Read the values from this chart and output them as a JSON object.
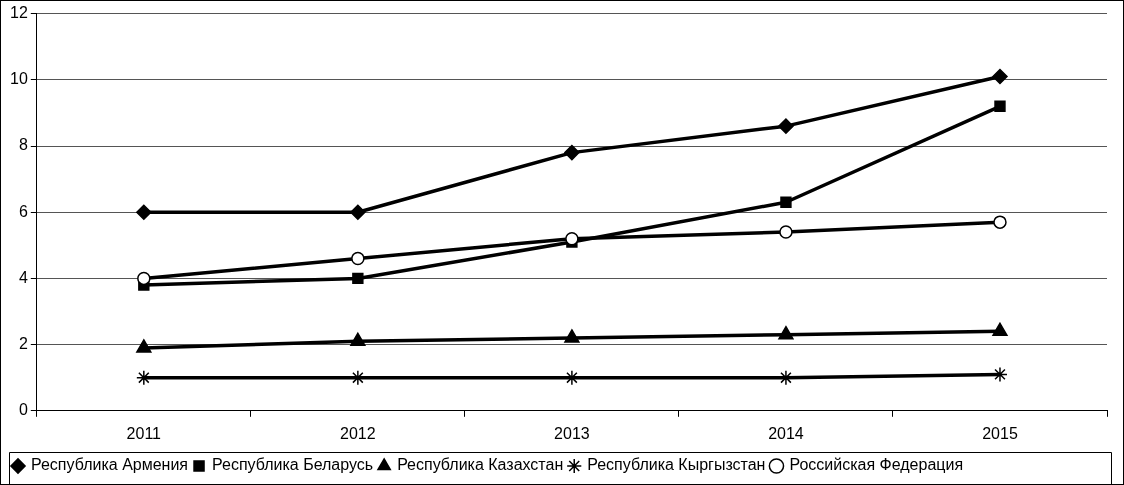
{
  "chart_data": {
    "type": "line",
    "categories": [
      "2011",
      "2012",
      "2013",
      "2014",
      "2015"
    ],
    "series": [
      {
        "name": "Республика Армения",
        "color": "#000000",
        "marker": "diamond",
        "values": [
          6,
          6,
          7.8,
          8.6,
          10.1
        ]
      },
      {
        "name": "Республика Беларусь",
        "color": "#000000",
        "marker": "square",
        "values": [
          3.8,
          4,
          5.1,
          6.3,
          9.2
        ]
      },
      {
        "name": "Республика Казахстан",
        "color": "#000000",
        "marker": "triangle",
        "values": [
          1.9,
          2.1,
          2.2,
          2.3,
          2.4
        ]
      },
      {
        "name": "Республика Кыргызстан",
        "color": "#000000",
        "marker": "cross",
        "values": [
          1,
          1,
          1,
          1,
          1.1
        ]
      },
      {
        "name": "Российская Федерация",
        "color": "#000000",
        "marker": "circle",
        "values": [
          4,
          4.6,
          5.2,
          5.4,
          5.7
        ]
      }
    ],
    "ylim": [
      0,
      12
    ],
    "yticks": [
      0,
      2,
      4,
      6,
      8,
      10,
      12
    ],
    "grid": "y",
    "legend": "bottom",
    "line_style": "solid"
  }
}
